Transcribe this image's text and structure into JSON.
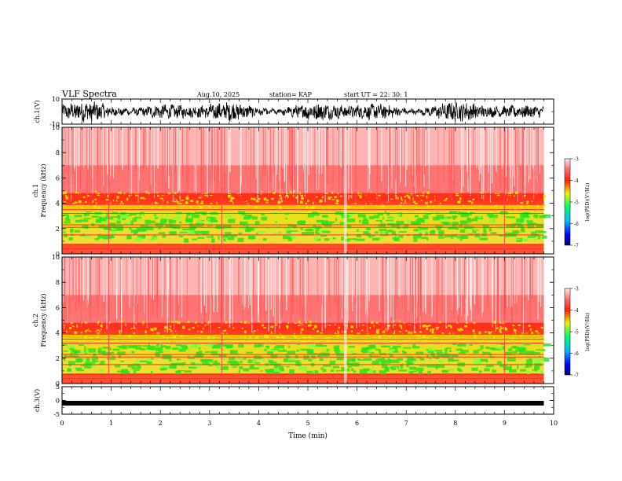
{
  "header": {
    "title": "VLF Spectra",
    "date": "Aug.10, 2025",
    "station": "station= KAP",
    "start": "start  UT  =    22: 30: 1"
  },
  "chart_data": [
    {
      "type": "line",
      "panel": "ch1-waveform",
      "ylabel": "ch.1(V)",
      "ylim": [
        -10,
        10
      ],
      "yticks": [
        "10",
        "-10"
      ],
      "xlim": [
        0,
        10
      ],
      "x_end": 9.8,
      "description_value": "noisy waveform, amplitude about 3-8 V"
    },
    {
      "type": "heatmap",
      "panel": "ch1-spectrogram",
      "ylabel": "ch.1\nFrequency (kHz)",
      "ylim": [
        0,
        10
      ],
      "yticks": [
        "0",
        "2",
        "4",
        "6",
        "8",
        "10"
      ],
      "xlim": [
        0,
        10
      ],
      "x_end": 9.8,
      "colorbar": {
        "label": "log(PSD)(V²/Hz)",
        "range": [
          -7,
          -3
        ],
        "ticks": [
          "-3",
          "-4",
          "-5",
          "-6",
          "-7"
        ]
      }
    },
    {
      "type": "heatmap",
      "panel": "ch2-spectrogram",
      "ylabel": "ch.2\nFrequency (kHz)",
      "ylim": [
        0,
        10
      ],
      "yticks": [
        "0",
        "2",
        "4",
        "6",
        "8",
        "10"
      ],
      "xlim": [
        0,
        10
      ],
      "x_end": 9.8,
      "colorbar": {
        "label": "log(PSD)(V²/Hz)",
        "range": [
          -7,
          -3
        ],
        "ticks": [
          "-3",
          "-4",
          "-5",
          "-6",
          "-7"
        ]
      }
    },
    {
      "type": "line",
      "panel": "ch3-waveform",
      "ylabel": "ch.3(V)",
      "ylim": [
        -5,
        5
      ],
      "yticks": [
        "5",
        "0",
        "-5"
      ],
      "xlim": [
        0,
        10
      ],
      "x_end": 9.8,
      "level": -1.0
    }
  ],
  "xaxis": {
    "label": "Time (min)",
    "ticks": [
      "0",
      "1",
      "2",
      "3",
      "4",
      "5",
      "6",
      "7",
      "8",
      "9",
      "10"
    ]
  }
}
